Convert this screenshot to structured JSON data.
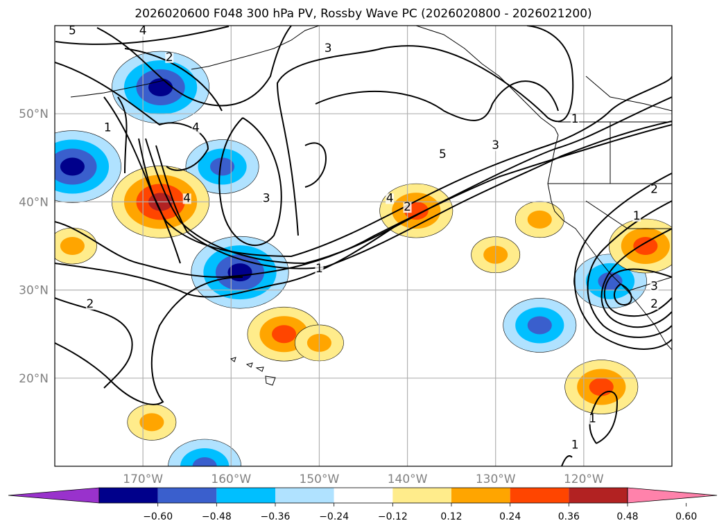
{
  "chart_data": {
    "type": "map-contour",
    "title": "2026020600 F048 300 hPa PV, Rossby Wave PC (2026020800 - 2026021200)",
    "lon_range": [
      -180,
      -110
    ],
    "lat_range": [
      10,
      60
    ],
    "lon_ticks": [
      {
        "value": -170,
        "label": "170°W"
      },
      {
        "value": -160,
        "label": "160°W"
      },
      {
        "value": -150,
        "label": "150°W"
      },
      {
        "value": -140,
        "label": "140°W"
      },
      {
        "value": -130,
        "label": "130°W"
      },
      {
        "value": -120,
        "label": "120°W"
      }
    ],
    "lat_ticks": [
      {
        "value": 20,
        "label": "20°N"
      },
      {
        "value": 30,
        "label": "30°N"
      },
      {
        "value": 40,
        "label": "40°N"
      },
      {
        "value": 50,
        "label": "50°N"
      }
    ],
    "colorbar": {
      "ticks": [
        "−0.60",
        "−0.48",
        "−0.36",
        "−0.24",
        "−0.12",
        "0.12",
        "0.24",
        "0.36",
        "0.48",
        "0.60"
      ],
      "colors": [
        "#9932cc",
        "#00008b",
        "#3a5fcd",
        "#00bfff",
        "#b0e2ff",
        "#ffffff",
        "#ffec8b",
        "#ffa500",
        "#ff4500",
        "#b22222",
        "#ff82ab"
      ],
      "extend": "both"
    },
    "pv_contour_labels": [
      {
        "text": "5",
        "lon": -178,
        "lat": 59
      },
      {
        "text": "4",
        "lon": -170,
        "lat": 59
      },
      {
        "text": "2",
        "lon": -167,
        "lat": 56
      },
      {
        "text": "3",
        "lon": -149,
        "lat": 57
      },
      {
        "text": "1",
        "lon": -174,
        "lat": 48
      },
      {
        "text": "4",
        "lon": -164,
        "lat": 48
      },
      {
        "text": "3",
        "lon": -156,
        "lat": 40
      },
      {
        "text": "4",
        "lon": -165,
        "lat": 40
      },
      {
        "text": "5",
        "lon": -136,
        "lat": 45
      },
      {
        "text": "3",
        "lon": -130,
        "lat": 46
      },
      {
        "text": "4",
        "lon": -142,
        "lat": 40
      },
      {
        "text": "2",
        "lon": -140,
        "lat": 39
      },
      {
        "text": "1",
        "lon": -150,
        "lat": 32
      },
      {
        "text": "2",
        "lon": -176,
        "lat": 28
      },
      {
        "text": "1",
        "lon": -121,
        "lat": 49
      },
      {
        "text": "1",
        "lon": -114,
        "lat": 38
      },
      {
        "text": "2",
        "lon": -112,
        "lat": 41
      },
      {
        "text": "3",
        "lon": -112,
        "lat": 30
      },
      {
        "text": "2",
        "lon": -112,
        "lat": 28
      },
      {
        "text": "1",
        "lon": -119,
        "lat": 15
      },
      {
        "text": "1",
        "lon": -121,
        "lat": 12
      }
    ],
    "pc_anomalies": [
      {
        "sign": "negative",
        "peak": -0.48,
        "lon": -168,
        "lat": 53
      },
      {
        "sign": "negative",
        "peak": -0.48,
        "lon": -178,
        "lat": 44
      },
      {
        "sign": "negative",
        "peak": -0.36,
        "lon": -161,
        "lat": 44
      },
      {
        "sign": "negative",
        "peak": -0.48,
        "lon": -159,
        "lat": 32
      },
      {
        "sign": "negative",
        "peak": -0.36,
        "lon": -125,
        "lat": 26
      },
      {
        "sign": "negative",
        "peak": -0.36,
        "lon": -117,
        "lat": 31
      },
      {
        "sign": "negative",
        "peak": -0.36,
        "lon": -163,
        "lat": 10
      },
      {
        "sign": "positive",
        "peak": 0.48,
        "lon": -168,
        "lat": 40
      },
      {
        "sign": "positive",
        "peak": 0.36,
        "lon": -139,
        "lat": 39
      },
      {
        "sign": "positive",
        "peak": 0.36,
        "lon": -154,
        "lat": 25
      },
      {
        "sign": "positive",
        "peak": 0.24,
        "lon": -150,
        "lat": 24
      },
      {
        "sign": "positive",
        "peak": 0.36,
        "lon": -118,
        "lat": 19
      },
      {
        "sign": "positive",
        "peak": 0.24,
        "lon": -125,
        "lat": 38
      },
      {
        "sign": "positive",
        "peak": 0.36,
        "lon": -113,
        "lat": 35
      },
      {
        "sign": "positive",
        "peak": 0.24,
        "lon": -130,
        "lat": 34
      },
      {
        "sign": "positive",
        "peak": 0.24,
        "lon": -178,
        "lat": 35
      },
      {
        "sign": "positive",
        "peak": 0.24,
        "lon": -169,
        "lat": 15
      }
    ]
  }
}
